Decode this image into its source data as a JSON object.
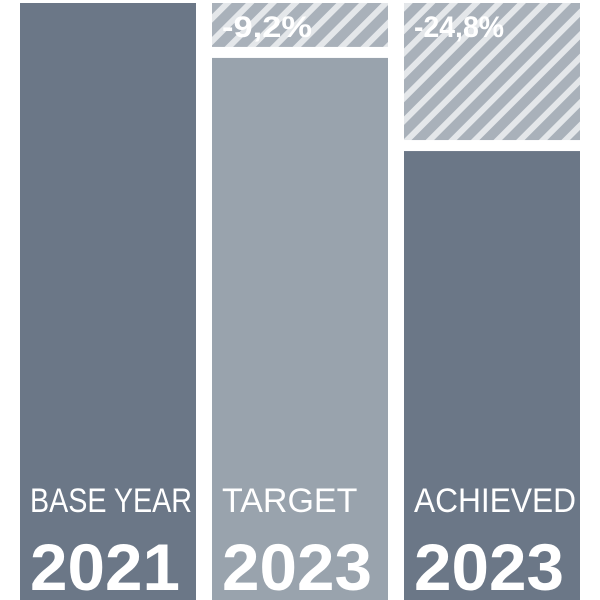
{
  "chart_data": {
    "type": "reduction-bar",
    "categories": [
      "BASE YEAR",
      "TARGET",
      "ACHIEVED"
    ],
    "years": [
      "2021",
      "2023",
      "2023"
    ],
    "ylim": [
      0,
      100
    ],
    "series": [
      {
        "colors": [
          "#6b7787",
          "#99a3ad",
          "#6b7787"
        ],
        "values": [
          100,
          90.8,
          75.2
        ]
      },
      {
        "color": "#a9b1ba",
        "values": [
          null,
          -9.2,
          -24.8
        ],
        "value_labels": [
          null,
          "-9,2%",
          "-24,8%"
        ]
      }
    ]
  }
}
